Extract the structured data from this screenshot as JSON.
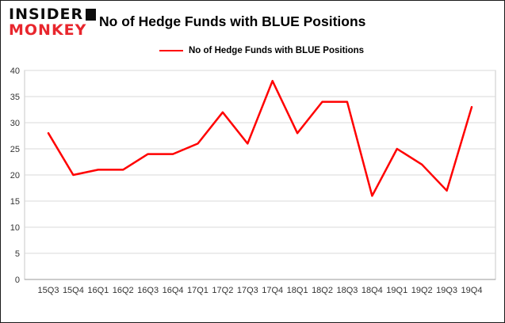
{
  "logo": {
    "line1": "INSIDER",
    "line2": "MONKEY"
  },
  "chart_data": {
    "type": "line",
    "title": "No of Hedge Funds with BLUE Positions",
    "legend": "No of Hedge Funds with BLUE Positions",
    "categories": [
      "15Q3",
      "15Q4",
      "16Q1",
      "16Q2",
      "16Q3",
      "16Q4",
      "17Q1",
      "17Q2",
      "17Q3",
      "17Q4",
      "18Q1",
      "18Q2",
      "18Q3",
      "18Q4",
      "19Q1",
      "19Q2",
      "19Q3",
      "19Q4"
    ],
    "values": [
      28,
      20,
      21,
      21,
      24,
      24,
      26,
      32,
      26,
      38,
      28,
      34,
      34,
      16,
      25,
      22,
      17,
      33
    ],
    "xlabel": "",
    "ylabel": "",
    "ylim": [
      0,
      40
    ],
    "ytick_step": 5,
    "grid": true,
    "legend_position": "top",
    "line_color": "#ff0000",
    "grid_color": "#d9d9d9",
    "axis_text_color": "#333333"
  }
}
